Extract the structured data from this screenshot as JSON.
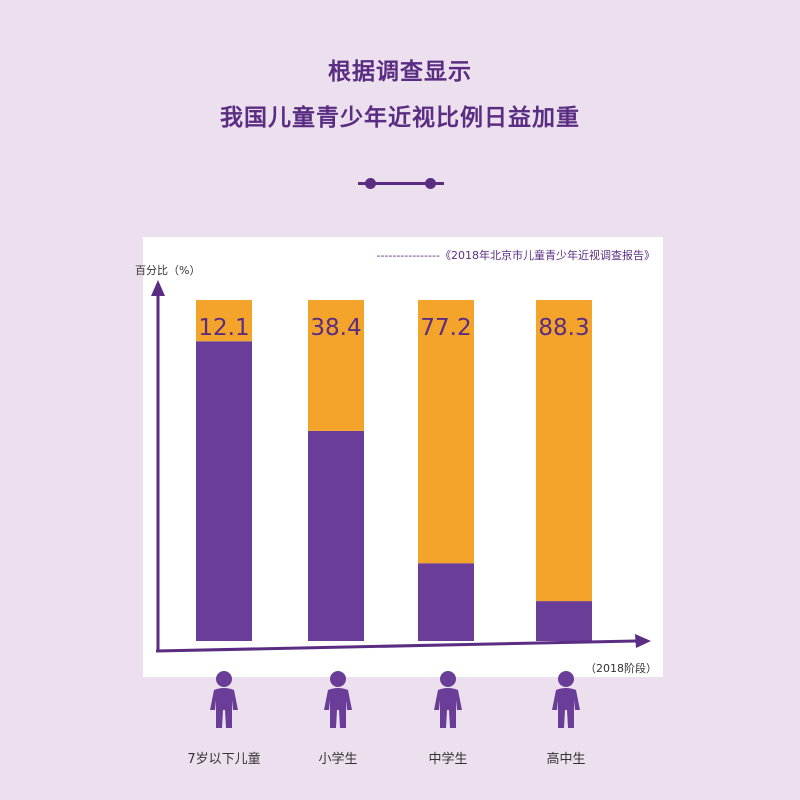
{
  "header": {
    "line1": "根据调查显示",
    "line2": "我国儿童青少年近视比例日益加重"
  },
  "colors": {
    "background": "#ece0ee",
    "purple": "#6a3d98",
    "orange": "#f4a42a",
    "accent": "#5a2d82"
  },
  "chart_data": {
    "type": "bar",
    "stacked": true,
    "source": "----------------《2018年北京市儿童青少年近视调查报告》",
    "ylabel": "百分比（%）",
    "xlabel": "（2018阶段）",
    "categories": [
      "7岁以下儿童",
      "小学生",
      "中学生",
      "高中生"
    ],
    "series": [
      {
        "color": "#6a3d98",
        "values": [
          87.9,
          61.6,
          22.8,
          11.7
        ]
      },
      {
        "color": "#f4a42a",
        "values": [
          12.1,
          38.4,
          77.2,
          88.3
        ]
      }
    ],
    "data_labels": [
      "12.1",
      "38.4",
      "77.2",
      "88.3"
    ],
    "ylim": [
      0,
      100
    ],
    "grid": false,
    "legend": "none"
  },
  "icons": {
    "category_icon": "person-icon"
  }
}
